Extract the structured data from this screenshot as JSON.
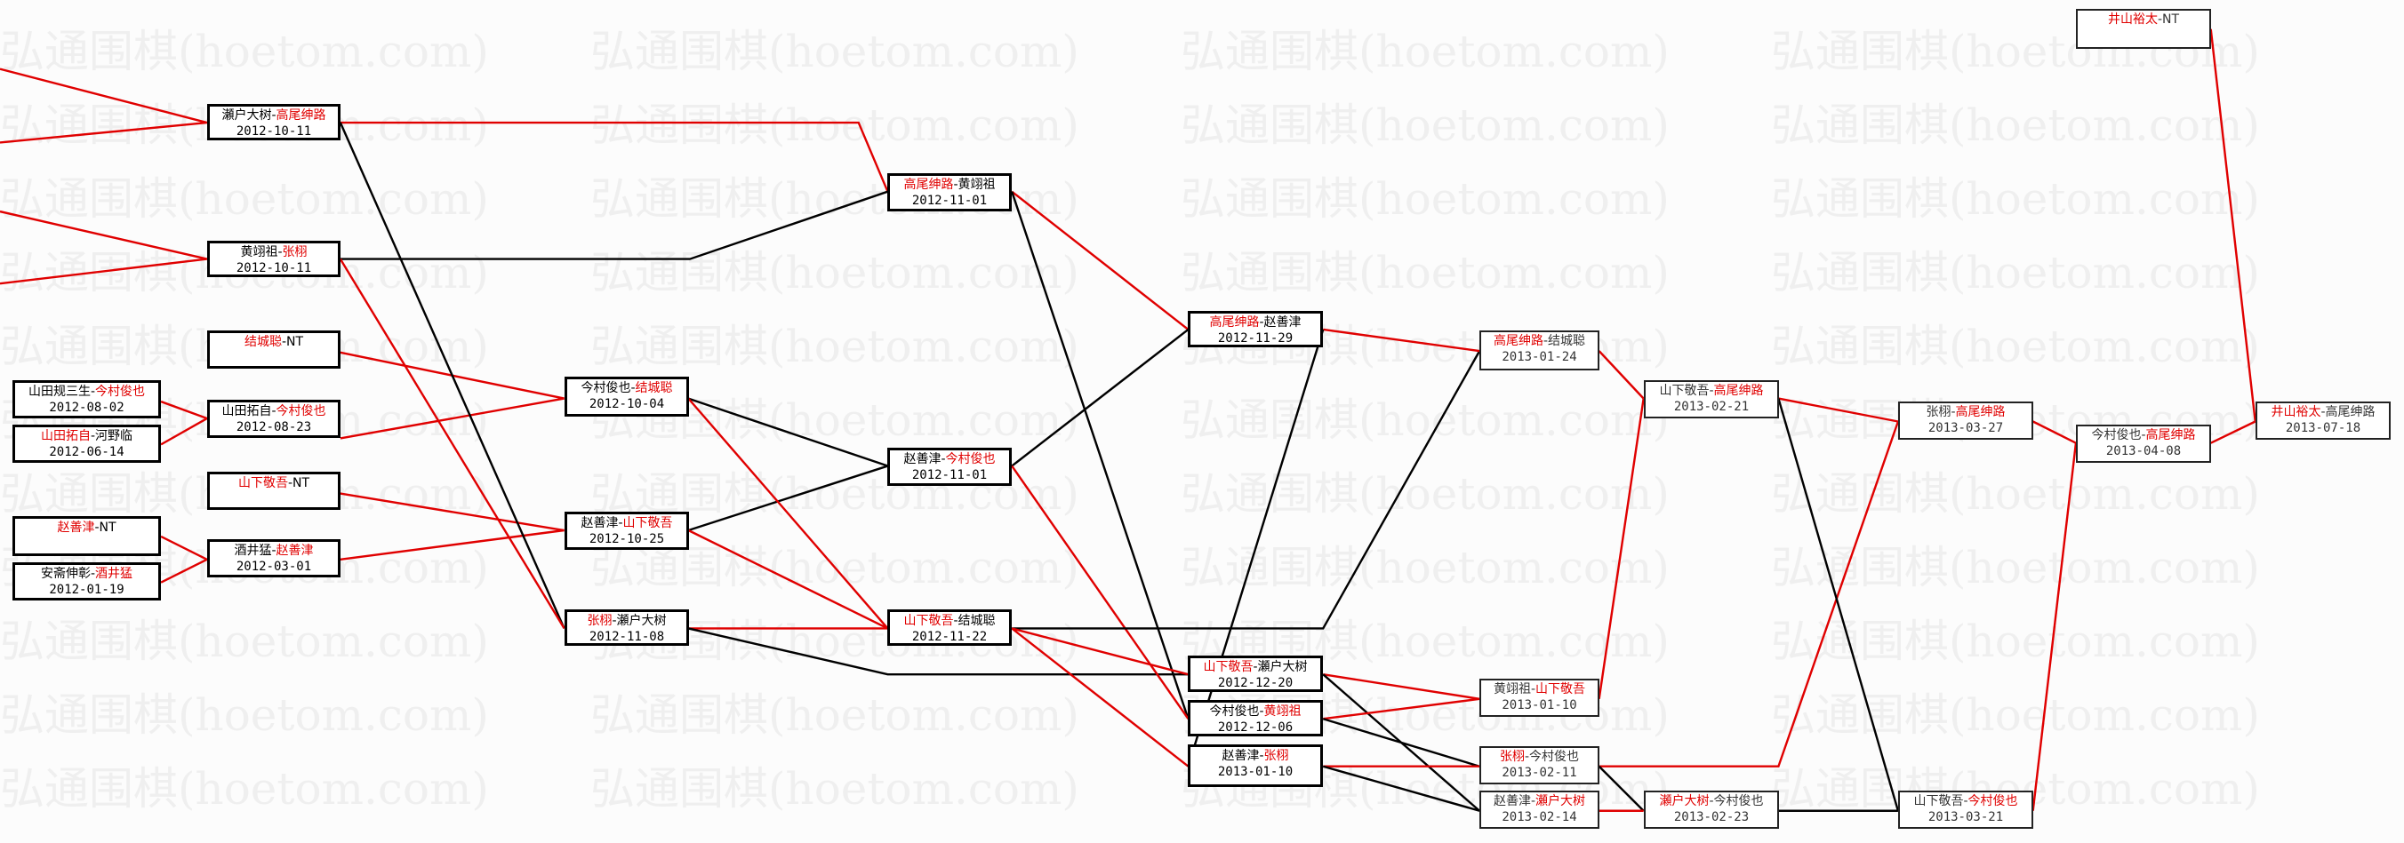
{
  "watermark": "弘通围棋(hoetom.com)",
  "colors": {
    "winner": "#e00000",
    "loser_line": "#000000",
    "winner_line": "#e00000",
    "watermark": "#efefef"
  },
  "games": [
    {
      "p1": "瀬户大树",
      "p2": "高尾绅路",
      "winner": 2,
      "date": "2012-10-11"
    },
    {
      "p1": "黄翊祖",
      "p2": "张栩",
      "winner": 2,
      "date": "2012-10-11"
    },
    {
      "p1": "结城聪",
      "p2": "NT",
      "winner": 1,
      "date": ""
    },
    {
      "p1": "山田规三生",
      "p2": "今村俊也",
      "winner": 2,
      "date": "2012-08-02"
    },
    {
      "p1": "山田拓自",
      "p2": "河野临",
      "winner": 1,
      "date": "2012-06-14"
    },
    {
      "p1": "山田拓自",
      "p2": "今村俊也",
      "winner": 2,
      "date": "2012-08-23"
    },
    {
      "p1": "山下敬吾",
      "p2": "NT",
      "winner": 1,
      "date": ""
    },
    {
      "p1": "赵善津",
      "p2": "NT",
      "winner": 1,
      "date": ""
    },
    {
      "p1": "安斋伸彰",
      "p2": "酒井猛",
      "winner": 2,
      "date": "2012-01-19"
    },
    {
      "p1": "酒井猛",
      "p2": "赵善津",
      "winner": 2,
      "date": "2012-03-01"
    },
    {
      "p1": "今村俊也",
      "p2": "结城聪",
      "winner": 2,
      "date": "2012-10-04"
    },
    {
      "p1": "赵善津",
      "p2": "山下敬吾",
      "winner": 2,
      "date": "2012-10-25"
    },
    {
      "p1": "张栩",
      "p2": "瀬户大树",
      "winner": 1,
      "date": "2012-11-08"
    },
    {
      "p1": "高尾绅路",
      "p2": "黄翊祖",
      "winner": 1,
      "date": "2012-11-01"
    },
    {
      "p1": "赵善津",
      "p2": "今村俊也",
      "winner": 2,
      "date": "2012-11-01"
    },
    {
      "p1": "山下敬吾",
      "p2": "结城聪",
      "winner": 1,
      "date": "2012-11-22"
    },
    {
      "p1": "高尾绅路",
      "p2": "赵善津",
      "winner": 1,
      "date": "2012-11-29"
    },
    {
      "p1": "山下敬吾",
      "p2": "瀬户大树",
      "winner": 1,
      "date": "2012-12-20"
    },
    {
      "p1": "今村俊也",
      "p2": "黄翊祖",
      "winner": 2,
      "date": "2012-12-06"
    },
    {
      "p1": "赵善津",
      "p2": "张栩",
      "winner": 2,
      "date": "2013-01-10"
    },
    {
      "p1": "高尾绅路",
      "p2": "结城聪",
      "winner": 1,
      "date": "2013-01-24"
    },
    {
      "p1": "黄翊祖",
      "p2": "山下敬吾",
      "winner": 2,
      "date": "2013-01-10"
    },
    {
      "p1": "张栩",
      "p2": "今村俊也",
      "winner": 1,
      "date": "2013-02-11"
    },
    {
      "p1": "赵善津",
      "p2": "瀬户大树",
      "winner": 2,
      "date": "2013-02-14"
    },
    {
      "p1": "山下敬吾",
      "p2": "高尾绅路",
      "winner": 2,
      "date": "2013-02-21"
    },
    {
      "p1": "瀬户大树",
      "p2": "今村俊也",
      "winner": 1,
      "date": "2013-02-23"
    },
    {
      "p1": "张栩",
      "p2": "高尾绅路",
      "winner": 2,
      "date": "2013-03-27"
    },
    {
      "p1": "山下敬吾",
      "p2": "今村俊也",
      "winner": 2,
      "date": "2013-03-21"
    },
    {
      "p1": "今村俊也",
      "p2": "高尾绅路",
      "winner": 2,
      "date": "2013-04-08"
    },
    {
      "p1": "井山裕太",
      "p2": "高尾绅路",
      "winner": 1,
      "date": "2013-07-18"
    },
    {
      "p1": "井山裕太",
      "p2": "NT",
      "winner": 1,
      "date": ""
    }
  ]
}
